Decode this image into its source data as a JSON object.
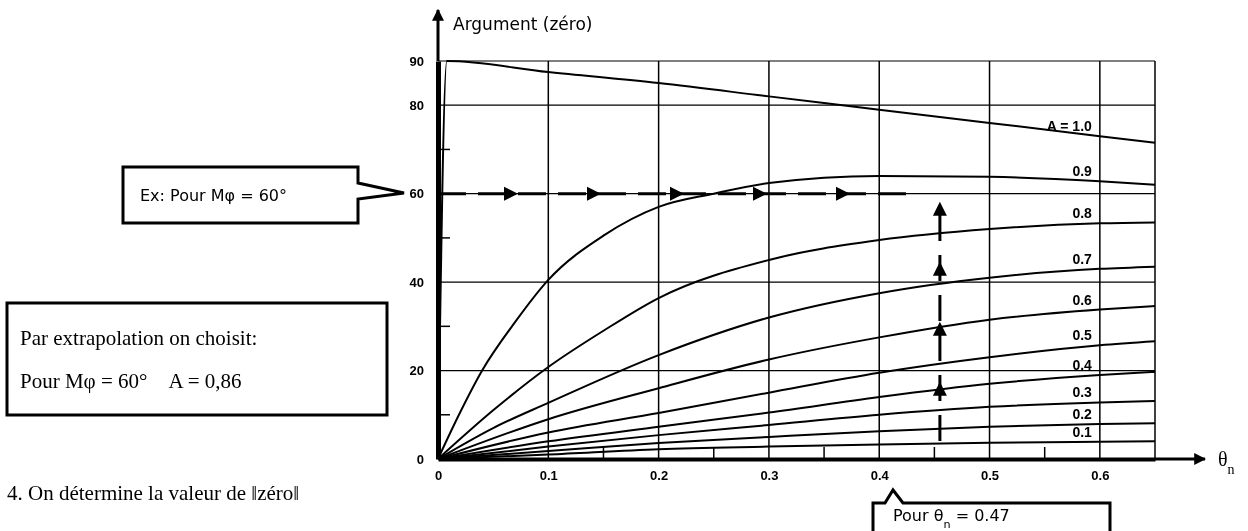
{
  "chart_data": {
    "type": "line",
    "xlabel": "θ$_{n}$",
    "ylabel": "Argument (zéro)",
    "xlim": [
      0,
      0.65
    ],
    "ylim": [
      0,
      90
    ],
    "xticks": [
      0,
      0.1,
      {
        "value": 0.15,
        "label": null
      },
      0.2,
      {
        "value": 0.25,
        "label": null
      },
      0.3,
      {
        "value": 0.35,
        "label": null
      },
      0.4,
      {
        "value": 0.45,
        "label": null
      },
      0.5,
      {
        "value": 0.55,
        "label": null
      },
      0.6
    ],
    "yticks": [
      0,
      {
        "value": 10,
        "label": null
      },
      20,
      {
        "value": 30,
        "label": null
      },
      40,
      {
        "value": 50,
        "label": null
      },
      60,
      {
        "value": 70,
        "label": null
      },
      80,
      90
    ],
    "grid": true,
    "marker": "none",
    "line_style": "solid",
    "series": [
      {
        "name": "A = 1.0",
        "color": "#000000",
        "x": [
          0,
          0.008,
          0.1,
          0.2,
          0.3,
          0.4,
          0.5,
          0.6,
          0.65
        ],
        "values": [
          0,
          90,
          87.5,
          85,
          82,
          79,
          76,
          73,
          71.5
        ]
      },
      {
        "name": "0.9",
        "color": "#000000",
        "x": [
          0,
          0.02,
          0.04,
          0.07,
          0.1,
          0.15,
          0.2,
          0.25,
          0.3,
          0.4,
          0.5,
          0.6,
          0.65
        ],
        "values": [
          0,
          10.5,
          20,
          31,
          40.5,
          50.5,
          57,
          60,
          62.4,
          64,
          63.8,
          62.8,
          62
        ]
      },
      {
        "name": "0.8",
        "color": "#000000",
        "x": [
          0,
          0.05,
          0.1,
          0.15,
          0.2,
          0.3,
          0.4,
          0.5,
          0.6,
          0.65
        ],
        "values": [
          0,
          11,
          20.8,
          29,
          36.4,
          45,
          49.5,
          52,
          53.3,
          53.5
        ]
      },
      {
        "name": "0.7",
        "color": "#000000",
        "x": [
          0,
          0.05,
          0.1,
          0.2,
          0.3,
          0.4,
          0.5,
          0.6,
          0.65
        ],
        "values": [
          0,
          7,
          12.7,
          23.5,
          32,
          37.5,
          41,
          43,
          43.5
        ]
      },
      {
        "name": "0.6",
        "color": "#000000",
        "x": [
          0,
          0.1,
          0.2,
          0.3,
          0.4,
          0.5,
          0.6,
          0.65
        ],
        "values": [
          0,
          9,
          16,
          22.5,
          27.5,
          31.5,
          33.8,
          34.6
        ]
      },
      {
        "name": "0.5",
        "color": "#000000",
        "x": [
          0,
          0.1,
          0.2,
          0.3,
          0.4,
          0.5,
          0.6,
          0.65
        ],
        "values": [
          0,
          6,
          10.4,
          15,
          19.5,
          23,
          25.7,
          26.6
        ]
      },
      {
        "name": "0.4",
        "color": "#000000",
        "x": [
          0,
          0.1,
          0.2,
          0.3,
          0.4,
          0.5,
          0.6,
          0.65
        ],
        "values": [
          0,
          4,
          7.3,
          10.5,
          14,
          17,
          19,
          19.7
        ]
      },
      {
        "name": "0.3",
        "color": "#000000",
        "x": [
          0,
          0.1,
          0.2,
          0.3,
          0.4,
          0.5,
          0.6,
          0.65
        ],
        "values": [
          0,
          2.8,
          5.4,
          7.7,
          10,
          11.8,
          12.8,
          13.1
        ]
      },
      {
        "name": "0.2",
        "color": "#000000",
        "x": [
          0,
          0.1,
          0.2,
          0.3,
          0.4,
          0.5,
          0.6,
          0.65
        ],
        "values": [
          0,
          1.8,
          3.6,
          5,
          6.3,
          7.3,
          7.9,
          8.1
        ]
      },
      {
        "name": "0.1",
        "color": "#000000",
        "x": [
          0,
          0.1,
          0.2,
          0.3,
          0.4,
          0.5,
          0.6,
          0.65
        ],
        "values": [
          0,
          1,
          2.2,
          2.8,
          3.3,
          3.7,
          3.9,
          4
        ]
      }
    ],
    "ref_lines": [
      {
        "axis": "y",
        "value": 60,
        "line_style": "dashed",
        "color": "#000000"
      },
      {
        "axis": "x",
        "value": 0.455,
        "line_style": "dashed",
        "color": "#000000"
      }
    ],
    "annotations": [
      "Ex: Pour Mφ = 60°",
      "Par extrapolation on choisit:\nPour Mφ = 60°    A = 0,86",
      "4. On détermine la valeur de ‖zéro‖",
      "Pour θ$_{n}$ = 0.47"
    ]
  }
}
